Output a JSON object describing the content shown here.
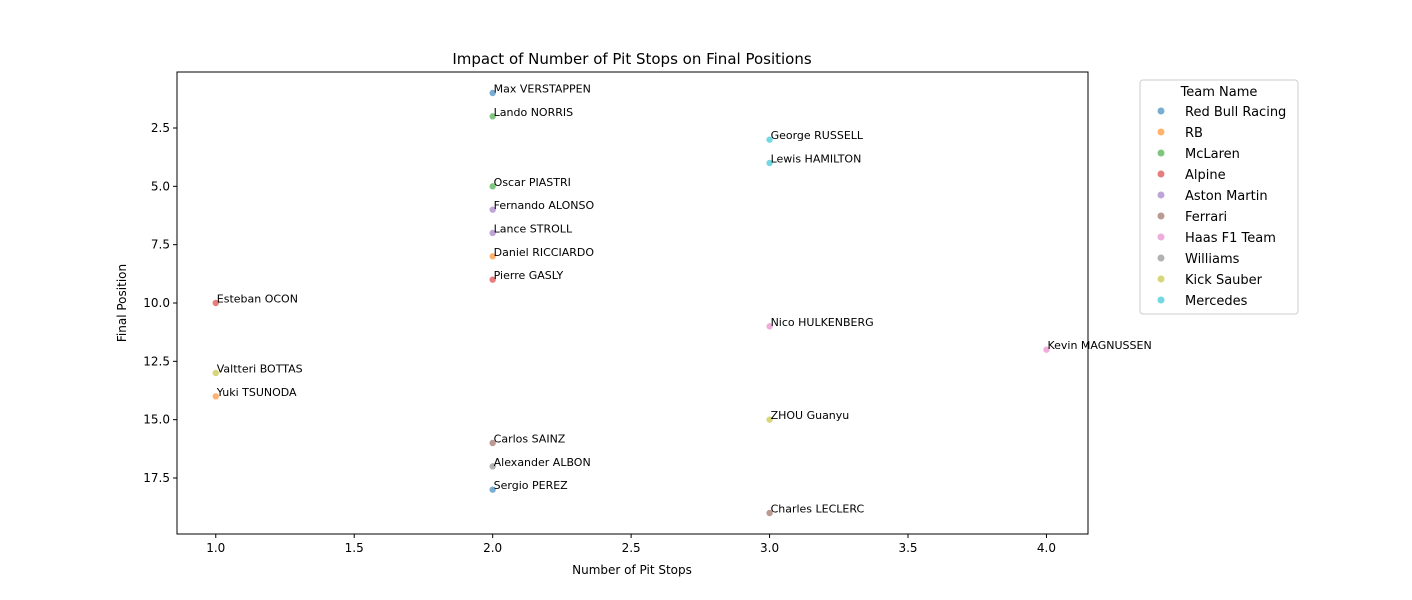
{
  "chart_data": {
    "type": "scatter",
    "title": "Impact of Number of Pit Stops on Final Positions",
    "xlabel": "Number of Pit Stops",
    "ylabel": "Final Position",
    "xlim": [
      0.86,
      4.15
    ],
    "ylim": [
      19.9,
      0.1
    ],
    "y_inverted": true,
    "xticks": [
      1.0,
      1.5,
      2.0,
      2.5,
      3.0,
      3.5,
      4.0
    ],
    "xtick_labels": [
      "1.0",
      "1.5",
      "2.0",
      "2.5",
      "3.0",
      "3.5",
      "4.0"
    ],
    "yticks": [
      2.5,
      5.0,
      7.5,
      10.0,
      12.5,
      15.0,
      17.5
    ],
    "ytick_labels": [
      "2.5",
      "5.0",
      "7.5",
      "10.0",
      "12.5",
      "15.0",
      "17.5"
    ],
    "grid": false,
    "legend": {
      "title": "Team Name",
      "placement": "outside-top-right",
      "entries": [
        {
          "name": "Red Bull Racing",
          "color": "#1f77b4"
        },
        {
          "name": "RB",
          "color": "#ff7f0e"
        },
        {
          "name": "McLaren",
          "color": "#2ca02c"
        },
        {
          "name": "Alpine",
          "color": "#d62728"
        },
        {
          "name": "Aston Martin",
          "color": "#9467bd"
        },
        {
          "name": "Ferrari",
          "color": "#8c564b"
        },
        {
          "name": "Haas F1 Team",
          "color": "#e377c2"
        },
        {
          "name": "Williams",
          "color": "#7f7f7f"
        },
        {
          "name": "Kick Sauber",
          "color": "#bcbd22"
        },
        {
          "name": "Mercedes",
          "color": "#17becf"
        }
      ]
    },
    "points": [
      {
        "label": "Max VERSTAPPEN",
        "x": 2,
        "y": 1,
        "team": "Red Bull Racing"
      },
      {
        "label": "Lando NORRIS",
        "x": 2,
        "y": 2,
        "team": "McLaren"
      },
      {
        "label": "George RUSSELL",
        "x": 3,
        "y": 3,
        "team": "Mercedes"
      },
      {
        "label": "Lewis HAMILTON",
        "x": 3,
        "y": 4,
        "team": "Mercedes"
      },
      {
        "label": "Oscar PIASTRI",
        "x": 2,
        "y": 5,
        "team": "McLaren"
      },
      {
        "label": "Fernando ALONSO",
        "x": 2,
        "y": 6,
        "team": "Aston Martin"
      },
      {
        "label": "Lance STROLL",
        "x": 2,
        "y": 7,
        "team": "Aston Martin"
      },
      {
        "label": "Daniel RICCIARDO",
        "x": 2,
        "y": 8,
        "team": "RB"
      },
      {
        "label": "Pierre GASLY",
        "x": 2,
        "y": 9,
        "team": "Alpine"
      },
      {
        "label": "Esteban OCON",
        "x": 1,
        "y": 10,
        "team": "Alpine"
      },
      {
        "label": "Nico HULKENBERG",
        "x": 3,
        "y": 11,
        "team": "Haas F1 Team"
      },
      {
        "label": "Kevin MAGNUSSEN",
        "x": 4,
        "y": 12,
        "team": "Haas F1 Team"
      },
      {
        "label": "Valtteri BOTTAS",
        "x": 1,
        "y": 13,
        "team": "Kick Sauber"
      },
      {
        "label": "Yuki TSUNODA",
        "x": 1,
        "y": 14,
        "team": "RB"
      },
      {
        "label": "ZHOU Guanyu",
        "x": 3,
        "y": 15,
        "team": "Kick Sauber"
      },
      {
        "label": "Carlos SAINZ",
        "x": 2,
        "y": 16,
        "team": "Ferrari"
      },
      {
        "label": "Alexander ALBON",
        "x": 2,
        "y": 17,
        "team": "Williams"
      },
      {
        "label": "Sergio PEREZ",
        "x": 2,
        "y": 18,
        "team": "Red Bull Racing"
      },
      {
        "label": "Charles LECLERC",
        "x": 3,
        "y": 19,
        "team": "Ferrari"
      }
    ]
  }
}
